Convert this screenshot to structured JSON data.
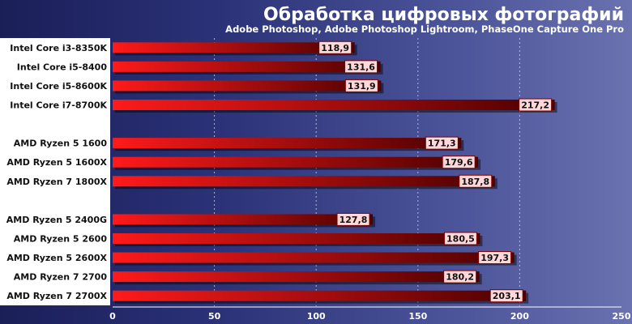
{
  "chart_data": {
    "type": "bar",
    "orientation": "horizontal",
    "title": "Обработка цифровых фотографий",
    "subtitle": "Adobe Photoshop, Adobe Photoshop Lightroom, PhaseOne Capture One Pro",
    "categories": [
      "Intel Core i3-8350K",
      "Intel Core i5-8400",
      "Intel Core i5-8600K",
      "Intel Core i7-8700K",
      "",
      "AMD Ryzen 5 1600",
      "AMD Ryzen 5 1600X",
      "AMD Ryzen 7 1800X",
      "",
      "AMD Ryzen 5 2400G",
      "AMD Ryzen 5 2600",
      "AMD Ryzen 5 2600X",
      "AMD Ryzen 7 2700",
      "AMD Ryzen 7 2700X"
    ],
    "values": [
      118.9,
      131.6,
      131.9,
      217.2,
      null,
      171.3,
      179.6,
      187.8,
      null,
      127.8,
      180.5,
      197.3,
      180.2,
      203.1
    ],
    "value_labels": [
      "118,9",
      "131,6",
      "131,9",
      "217,2",
      "",
      "171,3",
      "179,6",
      "187,8",
      "",
      "127,8",
      "180,5",
      "197,3",
      "180,2",
      "203,1"
    ],
    "xlim": [
      0,
      250
    ],
    "xticks": [
      0,
      50,
      100,
      150,
      200,
      250
    ],
    "grid": true,
    "xlabel": "",
    "ylabel": "",
    "colors": {
      "bar_start": "#ff1a1a",
      "bar_end": "#4a0000",
      "label_box": "#ffd9d9",
      "label_box_border": "#7a0000",
      "category_panel": "#ffffff"
    }
  }
}
